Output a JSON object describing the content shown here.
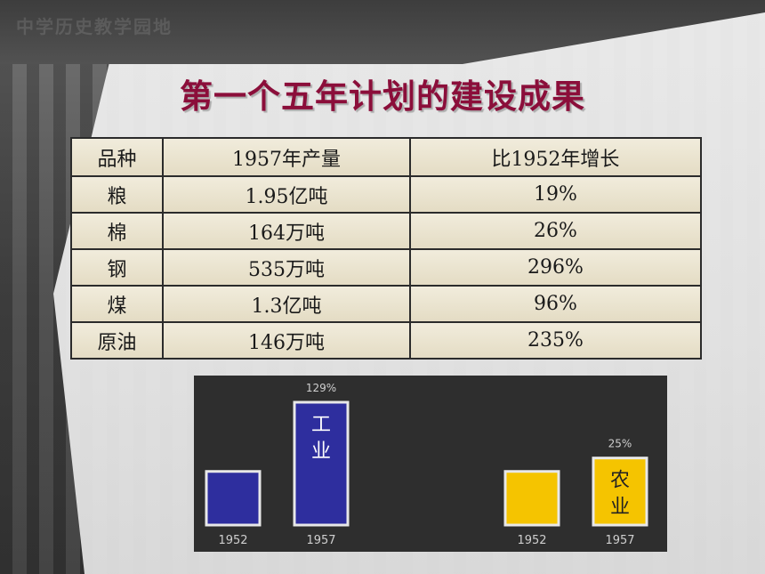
{
  "watermark": "中学历史教学园地",
  "title": "第一个五年计划的建设成果",
  "table": {
    "headers": [
      "品种",
      "1957年产量",
      "比1952年增长"
    ],
    "rows": [
      [
        "粮",
        "1.95亿吨",
        "19%"
      ],
      [
        "棉",
        "164万吨",
        "26%"
      ],
      [
        "钢",
        "535万吨",
        "296%"
      ],
      [
        "煤",
        "1.3亿吨",
        "96%"
      ],
      [
        "原油",
        "146万吨",
        "235%"
      ]
    ]
  },
  "chart_data": {
    "type": "bar",
    "groups": [
      {
        "name": "工业",
        "label_chars": [
          "工",
          "业"
        ],
        "growth_label": "129%",
        "color": "#2e2e9e",
        "categories": [
          "1952",
          "1957"
        ],
        "values": [
          100,
          229
        ]
      },
      {
        "name": "农业",
        "label_chars": [
          "农",
          "业"
        ],
        "growth_label": "25%",
        "color": "#f5c400",
        "categories": [
          "1952",
          "1957"
        ],
        "values": [
          100,
          125
        ]
      }
    ],
    "ylim": [
      0,
      250
    ],
    "title": "",
    "xlabel": "",
    "ylabel": ""
  }
}
